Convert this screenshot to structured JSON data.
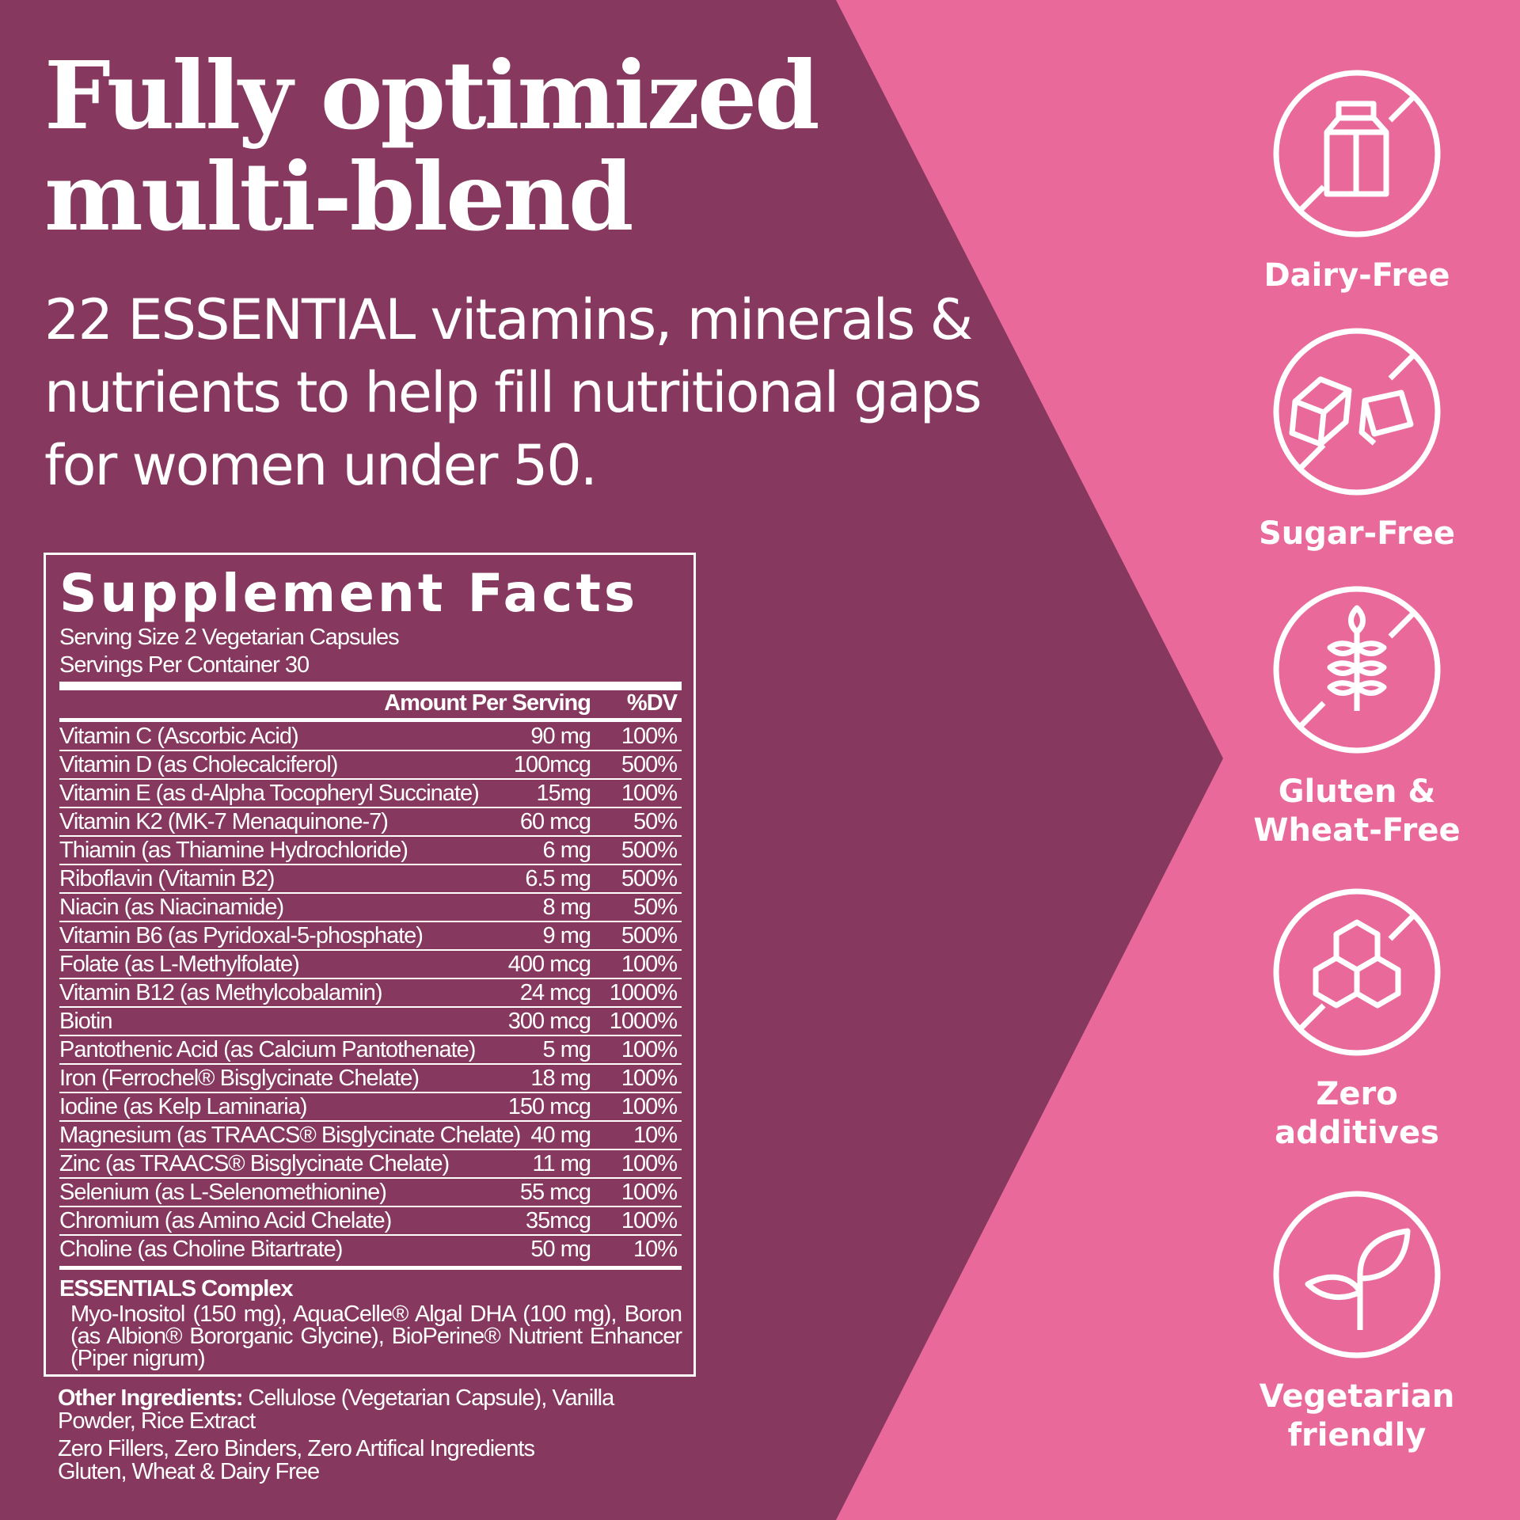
{
  "colors": {
    "purple": "#86385F",
    "pink": "#E96A9A",
    "text": "#FFFFFF"
  },
  "headline": [
    "Fully optimized",
    "multi-blend"
  ],
  "subheadline": "22 ESSENTIAL vitamins, minerals & nutrients to help fill nutritional gaps for women under 50.",
  "facts": {
    "title": "Supplement Facts",
    "serving_size": "Serving Size 2 Vegetarian Capsules",
    "servings_per_container": "Servings Per Container 30",
    "col_amount": "Amount Per Serving",
    "col_dv": "%DV",
    "rows": [
      {
        "name": "Vitamin C (Ascorbic Acid)",
        "amount": "90 mg",
        "dv": "100%"
      },
      {
        "name": "Vitamin D (as Cholecalciferol)",
        "amount": "100mcg",
        "dv": "500%"
      },
      {
        "name": "Vitamin E (as d-Alpha Tocopheryl Succinate)",
        "amount": "15mg",
        "dv": "100%"
      },
      {
        "name": "Vitamin K2 (MK-7 Menaquinone-7)",
        "amount": "60 mcg",
        "dv": "50%"
      },
      {
        "name": "Thiamin (as Thiamine Hydrochloride)",
        "amount": "6 mg",
        "dv": "500%"
      },
      {
        "name": "Riboflavin (Vitamin B2)",
        "amount": "6.5 mg",
        "dv": "500%"
      },
      {
        "name": "Niacin (as Niacinamide)",
        "amount": "8 mg",
        "dv": "50%"
      },
      {
        "name": "Vitamin B6 (as Pyridoxal-5-phosphate)",
        "amount": "9 mg",
        "dv": "500%"
      },
      {
        "name": "Folate (as L-Methylfolate)",
        "amount": "400 mcg",
        "dv": "100%"
      },
      {
        "name": "Vitamin B12 (as Methylcobalamin)",
        "amount": "24 mcg",
        "dv": "1000%"
      },
      {
        "name": "Biotin",
        "amount": "300 mcg",
        "dv": "1000%"
      },
      {
        "name": "Pantothenic Acid (as Calcium Pantothenate)",
        "amount": "5 mg",
        "dv": "100%"
      },
      {
        "name": "Iron (Ferrochel® Bisglycinate Chelate)",
        "amount": "18 mg",
        "dv": "100%"
      },
      {
        "name": "Iodine (as Kelp Laminaria)",
        "amount": "150 mcg",
        "dv": "100%"
      },
      {
        "name": "Magnesium (as TRAACS® Bisglycinate Chelate)",
        "amount": "40 mg",
        "dv": "10%"
      },
      {
        "name": "Zinc (as TRAACS® Bisglycinate Chelate)",
        "amount": "11 mg",
        "dv": "100%"
      },
      {
        "name": "Selenium (as L-Selenomethionine)",
        "amount": "55 mcg",
        "dv": "100%"
      },
      {
        "name": "Chromium (as Amino Acid Chelate)",
        "amount": "35mcg",
        "dv": "100%"
      },
      {
        "name": "Choline (as Choline Bitartrate)",
        "amount": "50 mg",
        "dv": "10%"
      }
    ],
    "complex_title": "ESSENTIALS Complex",
    "complex_text": "Myo-Inositol (150 mg), AquaCelle® Algal DHA (100 mg), Boron (as Albion® Bororganic Glycine), BioPerine® Nutrient Enhancer (Piper nigrum)"
  },
  "other": {
    "label": "Other Ingredients:",
    "text": " Cellulose (Vegetarian Capsule), Vanilla Powder, Rice Extract",
    "claims_1": "Zero Fillers, Zero Binders, Zero Artifical Ingredients",
    "claims_2": "Gluten, Wheat & Dairy Free"
  },
  "badges": [
    {
      "icon": "no-milk-carton-icon",
      "label": [
        "Dairy-Free"
      ]
    },
    {
      "icon": "no-sugar-cubes-icon",
      "label": [
        "Sugar-Free"
      ]
    },
    {
      "icon": "no-wheat-icon",
      "label": [
        "Gluten &",
        "Wheat-Free"
      ]
    },
    {
      "icon": "no-additives-icon",
      "label": [
        "Zero",
        "additives"
      ]
    },
    {
      "icon": "leaf-icon",
      "label": [
        "Vegetarian",
        "friendly"
      ]
    }
  ]
}
